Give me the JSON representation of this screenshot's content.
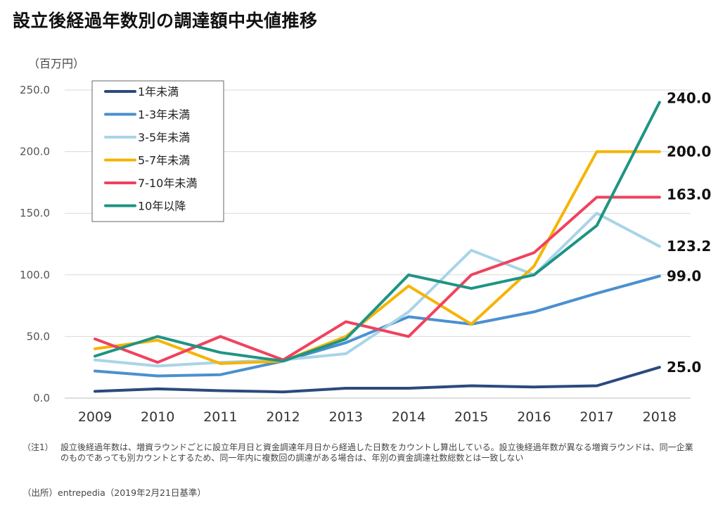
{
  "title": "設立後経過年数別の調達額中央値推移",
  "unit_label": "（百万円）",
  "note_label": "（注1）",
  "note_text": "設立後経過年数は、増資ラウンドごとに設立年月日と資金調達年月日から経過した日数をカウントし算出している。設立後経過年数が異なる増資ラウンドは、同一企業のものであっても別カウントとするため、同一年内に複数回の調達がある場合は、年別の資金調達社数総数とは一致しない",
  "source_text": "（出所）entrepedia（2019年2月21日基準）",
  "chart_data": {
    "type": "line",
    "title": "設立後経過年数別の調達額中央値推移",
    "ylabel": "（百万円）",
    "xlabel": "",
    "categories": [
      "2009",
      "2010",
      "2011",
      "2012",
      "2013",
      "2014",
      "2015",
      "2016",
      "2017",
      "2018"
    ],
    "ylim": [
      0,
      250
    ],
    "yticks": [
      "0.0",
      "50.0",
      "100.0",
      "150.0",
      "200.0",
      "250.0"
    ],
    "ytick_values": [
      0,
      50,
      100,
      150,
      200,
      250
    ],
    "grid": true,
    "legend_position": "top-left",
    "series": [
      {
        "name": "1年未満",
        "color": "#2B4A7E",
        "values": [
          5.5,
          7.5,
          6,
          5,
          8,
          8,
          10,
          9,
          10,
          25
        ],
        "end_label": "25.0"
      },
      {
        "name": "1-3年未満",
        "color": "#4A90D0",
        "values": [
          22,
          18,
          19,
          30,
          45,
          66,
          60,
          70,
          85,
          99
        ],
        "end_label": "99.0"
      },
      {
        "name": "3-5年未満",
        "color": "#A9D4E8",
        "values": [
          31,
          26,
          29,
          31,
          36,
          70,
          120,
          100,
          150,
          123.2
        ],
        "end_label": "123.2"
      },
      {
        "name": "5-7年未満",
        "color": "#F5B400",
        "values": [
          40,
          47,
          28,
          30,
          50,
          91,
          60,
          107,
          200,
          200
        ],
        "end_label": "200.0"
      },
      {
        "name": "7-10年未満",
        "color": "#F0425E",
        "values": [
          48,
          29,
          50,
          31,
          62,
          50,
          100,
          118,
          163,
          163
        ],
        "end_label": "163.0"
      },
      {
        "name": "10年以降",
        "color": "#1E9484",
        "values": [
          34,
          50,
          37,
          30,
          48,
          100,
          89,
          100,
          140,
          240
        ],
        "end_label": "240.0"
      }
    ]
  }
}
